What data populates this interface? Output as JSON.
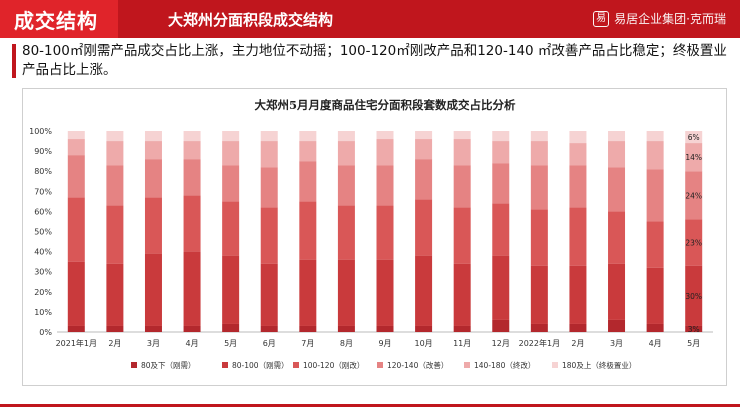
{
  "header": {
    "title": "成交结构",
    "subtitle": "大郑州分面积段成交结构",
    "brand": "易居企业集团·克而瑞",
    "brand_mark": "易"
  },
  "summary": "80-100㎡刚需产品成交占比上涨，主力地位不动摇；100-120㎡刚改产品和120-140 ㎡改善产品占比稳定；终极置业产品占比上涨。",
  "chart_data": {
    "type": "bar",
    "stacked": true,
    "title": "大郑州5月月度商品住宅分面积段套数成交占比分析",
    "categories": [
      "2021年1月",
      "2月",
      "3月",
      "4月",
      "5月",
      "6月",
      "7月",
      "8月",
      "9月",
      "10月",
      "11月",
      "12月",
      "2022年1月",
      "2月",
      "3月",
      "4月",
      "5月"
    ],
    "ylim": [
      0,
      100
    ],
    "yticks": [
      "0%",
      "10%",
      "20%",
      "30%",
      "40%",
      "50%",
      "60%",
      "70%",
      "80%",
      "90%",
      "100%"
    ],
    "legend_position": "bottom",
    "series": [
      {
        "name": "80及下（刚需）",
        "color": "#b3282d",
        "values": [
          3,
          3,
          3,
          3,
          4,
          3,
          3,
          3,
          3,
          3,
          3,
          6,
          4,
          4,
          6,
          4,
          3
        ]
      },
      {
        "name": "80-100（刚需）",
        "color": "#c93a3c",
        "values": [
          32,
          31,
          36,
          37,
          34,
          31,
          33,
          33,
          33,
          35,
          31,
          32,
          29,
          29,
          28,
          28,
          30
        ]
      },
      {
        "name": "100-120（刚改）",
        "color": "#d95757",
        "values": [
          32,
          29,
          28,
          28,
          27,
          28,
          29,
          27,
          27,
          28,
          28,
          26,
          28,
          29,
          26,
          23,
          23
        ]
      },
      {
        "name": "120-140（改善）",
        "color": "#e58383",
        "values": [
          21,
          20,
          19,
          18,
          18,
          20,
          20,
          20,
          20,
          20,
          21,
          20,
          22,
          21,
          22,
          26,
          24
        ]
      },
      {
        "name": "140-180（终改）",
        "color": "#eeaaaa",
        "values": [
          8,
          12,
          9,
          9,
          12,
          13,
          10,
          12,
          13,
          10,
          13,
          11,
          12,
          11,
          13,
          14,
          14
        ]
      },
      {
        "name": "180及上（终极置业）",
        "color": "#f6d3d3",
        "values": [
          4,
          5,
          5,
          5,
          5,
          5,
          5,
          5,
          4,
          4,
          4,
          5,
          5,
          6,
          5,
          5,
          6
        ]
      }
    ],
    "data_labels": {
      "category_index": 16,
      "labels": [
        "3%",
        "30%",
        "23%",
        "24%",
        "14%",
        "6%"
      ]
    }
  }
}
